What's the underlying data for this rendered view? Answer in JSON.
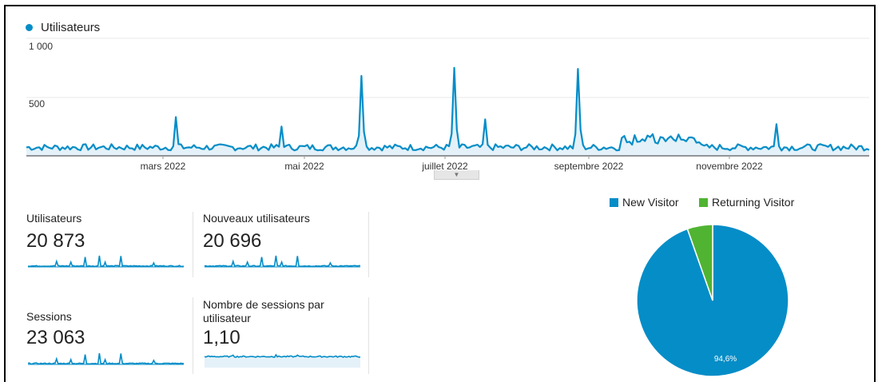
{
  "main_chart": {
    "legend_label": "Utilisateurs",
    "color": "#058dc7",
    "y_ticks": [
      "1 000",
      "500"
    ],
    "x_labels": [
      "mars 2022",
      "mai 2022",
      "juillet 2022",
      "septembre 2022",
      "novembre 2022"
    ],
    "collapse_icon": "chevron-down-icon",
    "y_max": 1000,
    "series": [
      {
        "name": "Utilisateurs",
        "points_per_day": 328,
        "spikes": [
          {
            "date_label": "mars 2022",
            "day": 58,
            "value": 330
          },
          {
            "day": 99,
            "value": 250
          },
          {
            "day": 130,
            "value": 680
          },
          {
            "day": 166,
            "value": 750
          },
          {
            "day": 178,
            "value": 310
          },
          {
            "day": 214,
            "value": 740
          },
          {
            "day": 291,
            "value": 270
          }
        ]
      }
    ]
  },
  "metrics": [
    {
      "label": "Utilisateurs",
      "value": "20 873"
    },
    {
      "label": "Nouveaux utilisateurs",
      "value": "20 696"
    },
    {
      "label": "Sessions",
      "value": "23 063"
    },
    {
      "label": "Nombre de sessions par utilisateur",
      "value": "1,10"
    }
  ],
  "pie": {
    "legend": [
      {
        "label": "New Visitor",
        "color": "#058dc7"
      },
      {
        "label": "Returning Visitor",
        "color": "#50b432"
      }
    ],
    "slices": [
      {
        "label": "New Visitor",
        "percent": 94.6,
        "text": "94,6%"
      },
      {
        "label": "Returning Visitor",
        "percent": 5.4
      }
    ]
  }
}
